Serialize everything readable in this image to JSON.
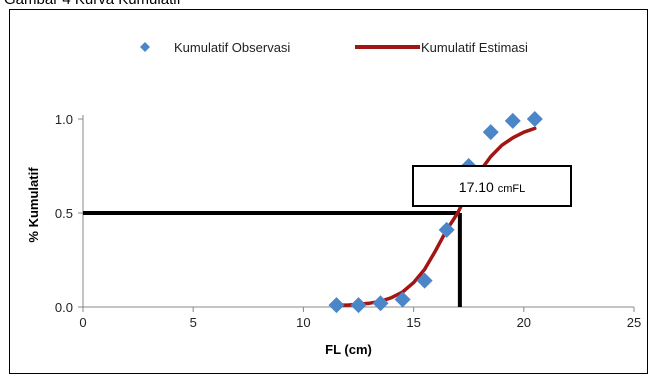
{
  "caption": "Gambar 4 Kurva Kumulatif",
  "chart_data": {
    "type": "scatter",
    "xlabel": "FL (cm)",
    "ylabel": "% Kumulatif",
    "xlim": [
      0,
      25
    ],
    "ylim": [
      0,
      1.0
    ],
    "x_ticks": [
      "0",
      "5",
      "10",
      "15",
      "20",
      "25"
    ],
    "y_ticks": [
      "0.0",
      "0.5",
      "1.0"
    ],
    "grid": false,
    "legend_position": "top",
    "series": [
      {
        "name": "Kumulatif Observasi",
        "kind": "markers",
        "color": "#4a86c8",
        "marker": "diamond",
        "x": [
          11.5,
          12.5,
          13.5,
          14.5,
          15.5,
          16.5,
          17.5,
          18.5,
          19.5,
          20.5
        ],
        "y": [
          0.01,
          0.01,
          0.02,
          0.04,
          0.14,
          0.41,
          0.75,
          0.93,
          0.99,
          1.0
        ]
      },
      {
        "name": "Kumulatif Estimasi",
        "kind": "line",
        "color": "#a31515",
        "x": [
          11.5,
          12.0,
          12.5,
          13.0,
          13.5,
          14.0,
          14.5,
          15.0,
          15.5,
          16.0,
          16.5,
          17.0,
          17.5,
          18.0,
          18.5,
          19.0,
          19.5,
          20.0,
          20.5
        ],
        "y": [
          0.01,
          0.01,
          0.015,
          0.02,
          0.03,
          0.05,
          0.08,
          0.13,
          0.2,
          0.3,
          0.41,
          0.5,
          0.62,
          0.72,
          0.8,
          0.86,
          0.9,
          0.93,
          0.95
        ]
      }
    ],
    "annotation": {
      "value": "17.10",
      "unit": "cmFL",
      "x": 17.1,
      "y": 0.5
    }
  }
}
